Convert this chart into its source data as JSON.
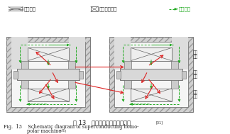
{
  "title_cn": "图 13   超导单极电机原理示意图",
  "title_cn_sup": "[31]",
  "title_en_line1": "Fig.  13    Schematic diagram of superconducting homo-",
  "title_en_line2": "polar machine",
  "title_en_sup": "[31]",
  "legend_stator_label": "定子结构",
  "legend_coil_label": "超导励磁绕组",
  "legend_flux_label": "磁通路径",
  "labels_right": [
    "实心\n转子",
    "错位\n凸极",
    "导磁\n结构"
  ],
  "bg_color": "#ffffff",
  "red_color": "#dd2222",
  "green_color": "#22aa22",
  "gray_dark": "#888888",
  "gray_mid": "#bbbbbb",
  "gray_light": "#e8e8e8",
  "gray_hatch": "#cccccc",
  "text_color": "#333333"
}
